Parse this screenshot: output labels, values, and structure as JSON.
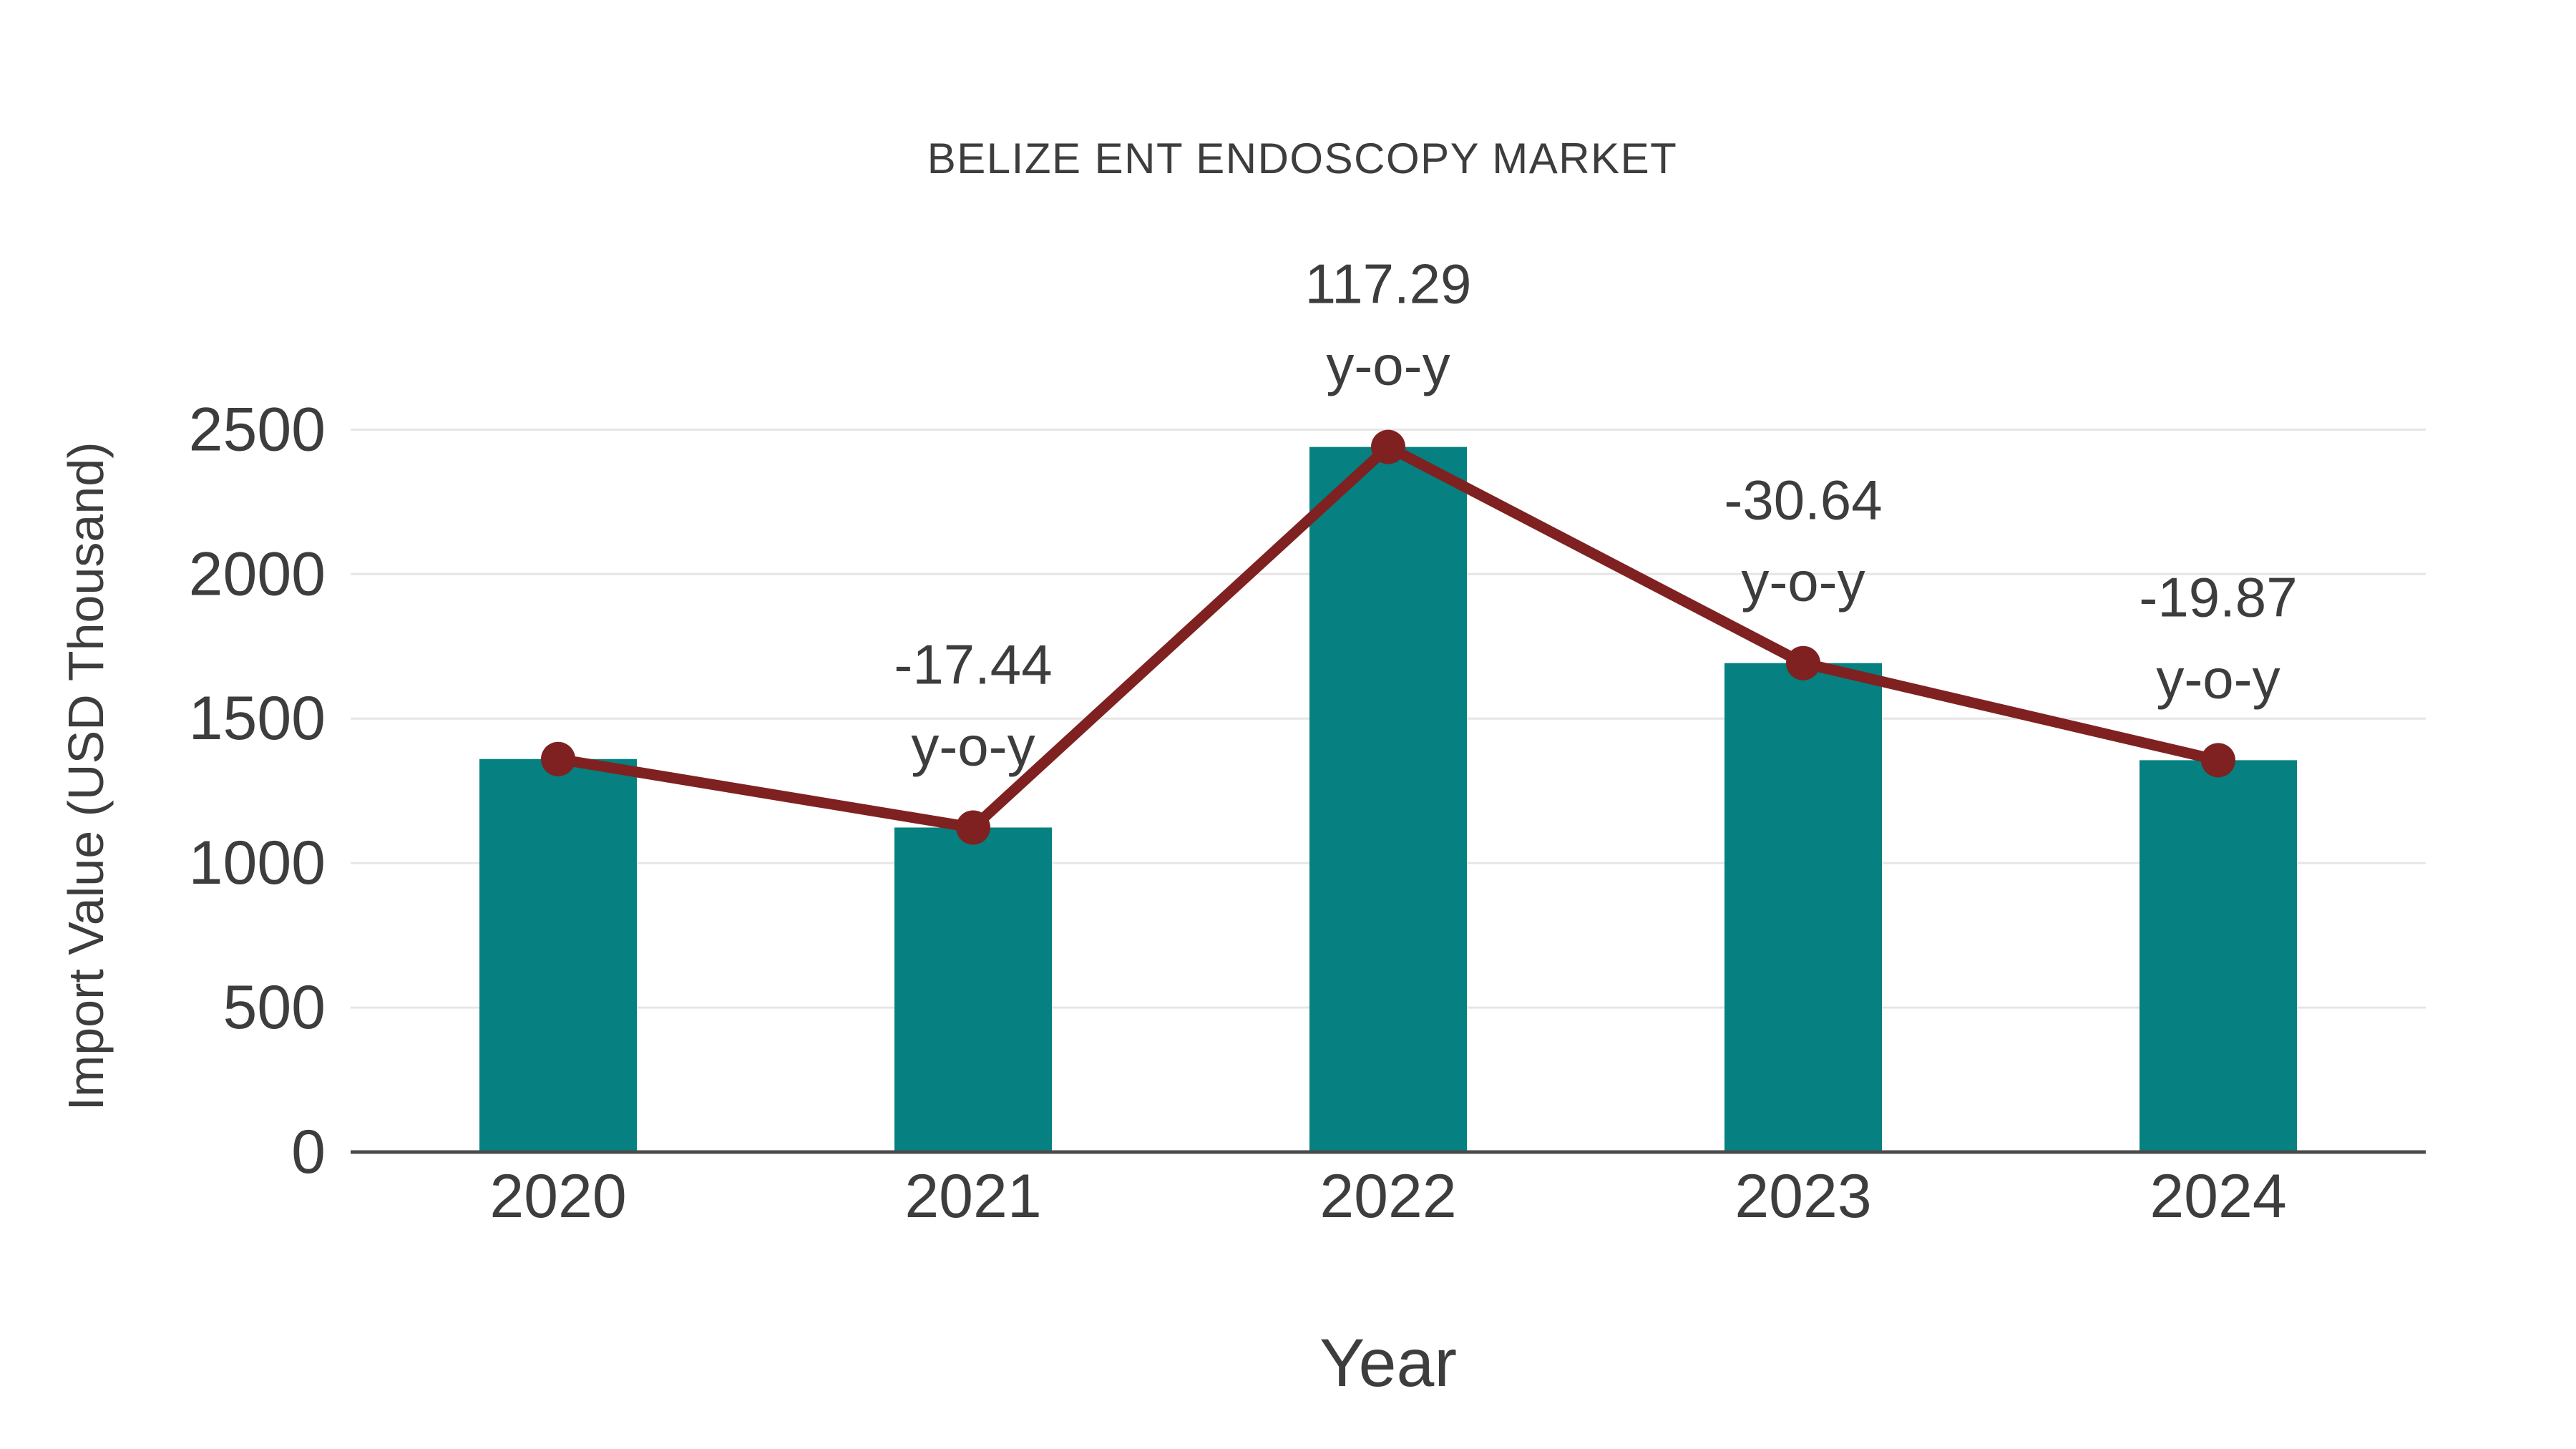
{
  "chart_data": {
    "type": "bar",
    "title": "BELIZE ENT ENDOSCOPY MARKET",
    "xlabel": "Year",
    "ylabel": "Import Value (USD Thousand)",
    "categories": [
      "2020",
      "2021",
      "2022",
      "2023",
      "2024"
    ],
    "series": [
      {
        "name": "Import Value bars",
        "type": "bar",
        "values": [
          1360,
          1123,
          2440,
          1692,
          1356
        ]
      },
      {
        "name": "Import Value trend line",
        "type": "line",
        "values": [
          1360,
          1123,
          2440,
          1692,
          1356
        ]
      }
    ],
    "annotations": [
      {
        "category": "2021",
        "value": "-17.44",
        "suffix": "y-o-y"
      },
      {
        "category": "2022",
        "value": "117.29",
        "suffix": "y-o-y"
      },
      {
        "category": "2023",
        "value": "-30.64",
        "suffix": "y-o-y"
      },
      {
        "category": "2024",
        "value": "-19.87",
        "suffix": "y-o-y"
      }
    ],
    "yticks": [
      0,
      500,
      1000,
      1500,
      2000,
      2500
    ],
    "ylim": [
      0,
      2600
    ],
    "grid": "horizontal",
    "legend": "none",
    "colors": {
      "bar": "#068080",
      "line": "#7f2121",
      "marker": "#7f2121",
      "text": "#3d3d3d",
      "grid": "#e6e6e6",
      "axis": "#4a4a4a",
      "background": "#ffffff"
    }
  }
}
